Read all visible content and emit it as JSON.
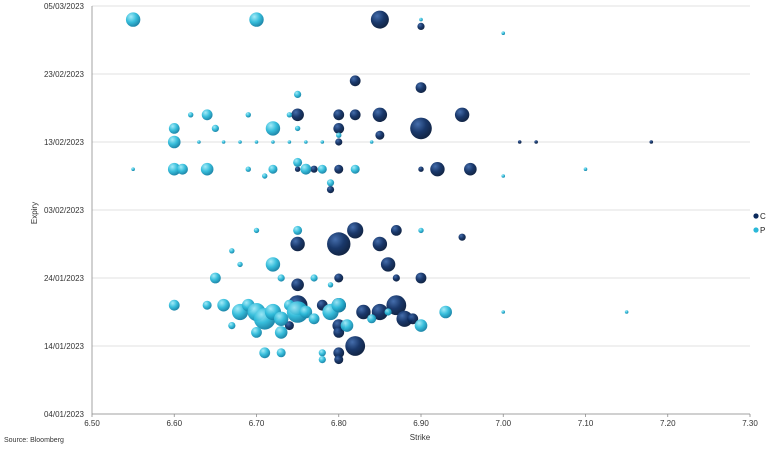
{
  "source": "Source: Bloomberg",
  "colors": {
    "call": "#0b2a5c",
    "put": "#2ab8d8",
    "grid": "#d9d9d9",
    "axis": "#8c8c8c"
  },
  "chart_data": {
    "type": "scatter",
    "xlabel": "Strike",
    "ylabel": "Expiry",
    "xlim": [
      6.5,
      7.3
    ],
    "ylim": [
      "04/01/2023",
      "05/03/2023"
    ],
    "x_ticks": [
      "6.50",
      "6.60",
      "6.70",
      "6.80",
      "6.90",
      "7.00",
      "7.10",
      "7.20",
      "7.30"
    ],
    "y_ticks": [
      "04/01/2023",
      "14/01/2023",
      "24/01/2023",
      "03/02/2023",
      "13/02/2023",
      "23/02/2023",
      "05/03/2023"
    ],
    "grid": true,
    "legend_position": "right",
    "series": [
      {
        "name": "C",
        "color": "#0b2a5c",
        "points": [
          [
            6.85,
            "03/03/2023",
            10
          ],
          [
            6.9,
            "02/03/2023",
            4
          ],
          [
            6.82,
            "22/02/2023",
            6
          ],
          [
            6.9,
            "21/02/2023",
            6
          ],
          [
            6.75,
            "17/02/2023",
            7
          ],
          [
            6.8,
            "17/02/2023",
            6
          ],
          [
            6.82,
            "17/02/2023",
            6
          ],
          [
            6.85,
            "17/02/2023",
            8
          ],
          [
            6.95,
            "17/02/2023",
            8
          ],
          [
            6.8,
            "15/02/2023",
            6
          ],
          [
            6.9,
            "15/02/2023",
            12
          ],
          [
            6.85,
            "14/02/2023",
            5
          ],
          [
            6.8,
            "13/02/2023",
            4
          ],
          [
            7.02,
            "13/02/2023",
            2
          ],
          [
            7.04,
            "13/02/2023",
            2
          ],
          [
            7.18,
            "13/02/2023",
            2
          ],
          [
            6.75,
            "09/02/2023",
            3
          ],
          [
            6.77,
            "09/02/2023",
            4
          ],
          [
            6.8,
            "09/02/2023",
            5
          ],
          [
            6.9,
            "09/02/2023",
            3
          ],
          [
            6.92,
            "09/02/2023",
            8
          ],
          [
            6.96,
            "09/02/2023",
            7
          ],
          [
            6.79,
            "06/02/2023",
            4
          ],
          [
            6.82,
            "31/01/2023",
            9
          ],
          [
            6.87,
            "31/01/2023",
            6
          ],
          [
            6.95,
            "30/01/2023",
            4
          ],
          [
            6.75,
            "29/01/2023",
            8
          ],
          [
            6.8,
            "29/01/2023",
            13
          ],
          [
            6.85,
            "29/01/2023",
            8
          ],
          [
            6.86,
            "26/01/2023",
            8
          ],
          [
            6.75,
            "23/01/2023",
            7
          ],
          [
            6.8,
            "24/01/2023",
            5
          ],
          [
            6.87,
            "24/01/2023",
            4
          ],
          [
            6.9,
            "24/01/2023",
            6
          ],
          [
            6.75,
            "20/01/2023",
            11
          ],
          [
            6.78,
            "20/01/2023",
            6
          ],
          [
            6.8,
            "20/01/2023",
            8
          ],
          [
            6.83,
            "19/01/2023",
            8
          ],
          [
            6.85,
            "19/01/2023",
            9
          ],
          [
            6.87,
            "20/01/2023",
            11
          ],
          [
            6.88,
            "18/01/2023",
            9
          ],
          [
            6.8,
            "17/01/2023",
            7
          ],
          [
            6.89,
            "18/01/2023",
            6
          ],
          [
            6.74,
            "17/01/2023",
            5
          ],
          [
            6.8,
            "16/01/2023",
            6
          ],
          [
            6.82,
            "14/01/2023",
            11
          ],
          [
            6.8,
            "13/01/2023",
            6
          ],
          [
            6.8,
            "12/01/2023",
            5
          ]
        ]
      },
      {
        "name": "P",
        "color": "#2ab8d8",
        "points": [
          [
            6.55,
            "03/03/2023",
            8
          ],
          [
            6.7,
            "03/03/2023",
            8
          ],
          [
            6.9,
            "03/03/2023",
            2
          ],
          [
            7.0,
            "01/03/2023",
            2
          ],
          [
            6.75,
            "20/02/2023",
            4
          ],
          [
            6.62,
            "17/02/2023",
            3
          ],
          [
            6.64,
            "17/02/2023",
            6
          ],
          [
            6.69,
            "17/02/2023",
            3
          ],
          [
            6.74,
            "17/02/2023",
            3
          ],
          [
            6.6,
            "15/02/2023",
            6
          ],
          [
            6.65,
            "15/02/2023",
            4
          ],
          [
            6.72,
            "15/02/2023",
            8
          ],
          [
            6.75,
            "15/02/2023",
            3
          ],
          [
            6.8,
            "14/02/2023",
            3
          ],
          [
            6.6,
            "13/02/2023",
            7
          ],
          [
            6.63,
            "13/02/2023",
            2
          ],
          [
            6.66,
            "13/02/2023",
            2
          ],
          [
            6.68,
            "13/02/2023",
            2
          ],
          [
            6.7,
            "13/02/2023",
            2
          ],
          [
            6.72,
            "13/02/2023",
            2
          ],
          [
            6.74,
            "13/02/2023",
            2
          ],
          [
            6.76,
            "13/02/2023",
            2
          ],
          [
            6.78,
            "13/02/2023",
            2
          ],
          [
            6.84,
            "13/02/2023",
            2
          ],
          [
            6.75,
            "10/02/2023",
            5
          ],
          [
            6.55,
            "09/02/2023",
            2
          ],
          [
            6.6,
            "09/02/2023",
            7
          ],
          [
            6.61,
            "09/02/2023",
            6
          ],
          [
            6.64,
            "09/02/2023",
            7
          ],
          [
            6.69,
            "09/02/2023",
            3
          ],
          [
            6.72,
            "09/02/2023",
            5
          ],
          [
            6.76,
            "09/02/2023",
            6
          ],
          [
            6.78,
            "09/02/2023",
            5
          ],
          [
            6.82,
            "09/02/2023",
            5
          ],
          [
            6.71,
            "08/02/2023",
            3
          ],
          [
            6.79,
            "07/02/2023",
            4
          ],
          [
            7.1,
            "09/02/2023",
            2
          ],
          [
            7.0,
            "08/02/2023",
            2
          ],
          [
            6.7,
            "31/01/2023",
            3
          ],
          [
            6.75,
            "31/01/2023",
            5
          ],
          [
            6.9,
            "31/01/2023",
            3
          ],
          [
            6.67,
            "28/01/2023",
            3
          ],
          [
            6.68,
            "26/01/2023",
            3
          ],
          [
            6.72,
            "26/01/2023",
            8
          ],
          [
            6.65,
            "24/01/2023",
            6
          ],
          [
            6.73,
            "24/01/2023",
            4
          ],
          [
            6.77,
            "24/01/2023",
            4
          ],
          [
            6.79,
            "23/01/2023",
            3
          ],
          [
            6.6,
            "20/01/2023",
            6
          ],
          [
            6.64,
            "20/01/2023",
            5
          ],
          [
            6.66,
            "20/01/2023",
            7
          ],
          [
            6.68,
            "19/01/2023",
            9
          ],
          [
            6.69,
            "20/01/2023",
            7
          ],
          [
            6.7,
            "19/01/2023",
            10
          ],
          [
            6.71,
            "18/01/2023",
            12
          ],
          [
            6.72,
            "19/01/2023",
            9
          ],
          [
            6.73,
            "18/01/2023",
            8
          ],
          [
            6.74,
            "20/01/2023",
            6
          ],
          [
            6.75,
            "19/01/2023",
            12
          ],
          [
            6.76,
            "19/01/2023",
            7
          ],
          [
            6.77,
            "18/01/2023",
            6
          ],
          [
            6.79,
            "19/01/2023",
            9
          ],
          [
            6.8,
            "20/01/2023",
            8
          ],
          [
            6.81,
            "17/01/2023",
            7
          ],
          [
            6.84,
            "18/01/2023",
            5
          ],
          [
            6.86,
            "19/01/2023",
            4
          ],
          [
            6.9,
            "17/01/2023",
            7
          ],
          [
            6.93,
            "19/01/2023",
            7
          ],
          [
            7.0,
            "19/01/2023",
            2
          ],
          [
            7.15,
            "19/01/2023",
            2
          ],
          [
            6.67,
            "17/01/2023",
            4
          ],
          [
            6.7,
            "16/01/2023",
            6
          ],
          [
            6.73,
            "16/01/2023",
            7
          ],
          [
            6.71,
            "13/01/2023",
            6
          ],
          [
            6.73,
            "13/01/2023",
            5
          ],
          [
            6.78,
            "13/01/2023",
            4
          ],
          [
            6.78,
            "12/01/2023",
            4
          ]
        ]
      }
    ]
  }
}
